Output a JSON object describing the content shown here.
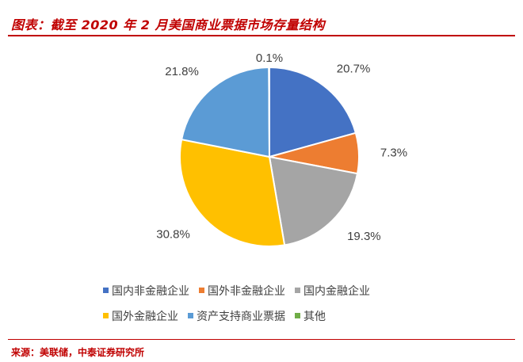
{
  "header": {
    "title": "图表：截至 2020 年 2 月美国商业票据市场存量结构"
  },
  "chart_data": {
    "type": "pie",
    "title": "",
    "slices": [
      {
        "name": "国内非金融企业",
        "value": 20.7,
        "label": "20.7%",
        "color": "#4472c4"
      },
      {
        "name": "国外非金融企业",
        "value": 7.3,
        "label": "7.3%",
        "color": "#ed7d31"
      },
      {
        "name": "国内金融企业",
        "value": 19.3,
        "label": "19.3%",
        "color": "#a5a5a5"
      },
      {
        "name": "国外金融企业",
        "value": 30.8,
        "label": "30.8%",
        "color": "#ffc000"
      },
      {
        "name": "资产支持商业票据",
        "value": 21.8,
        "label": "21.8%",
        "color": "#5b9bd5"
      },
      {
        "name": "其他",
        "value": 0.1,
        "label": "0.1%",
        "color": "#70ad47"
      }
    ],
    "legend_position": "bottom"
  },
  "footer": {
    "source": "来源：美联储，中泰证券研究所"
  }
}
